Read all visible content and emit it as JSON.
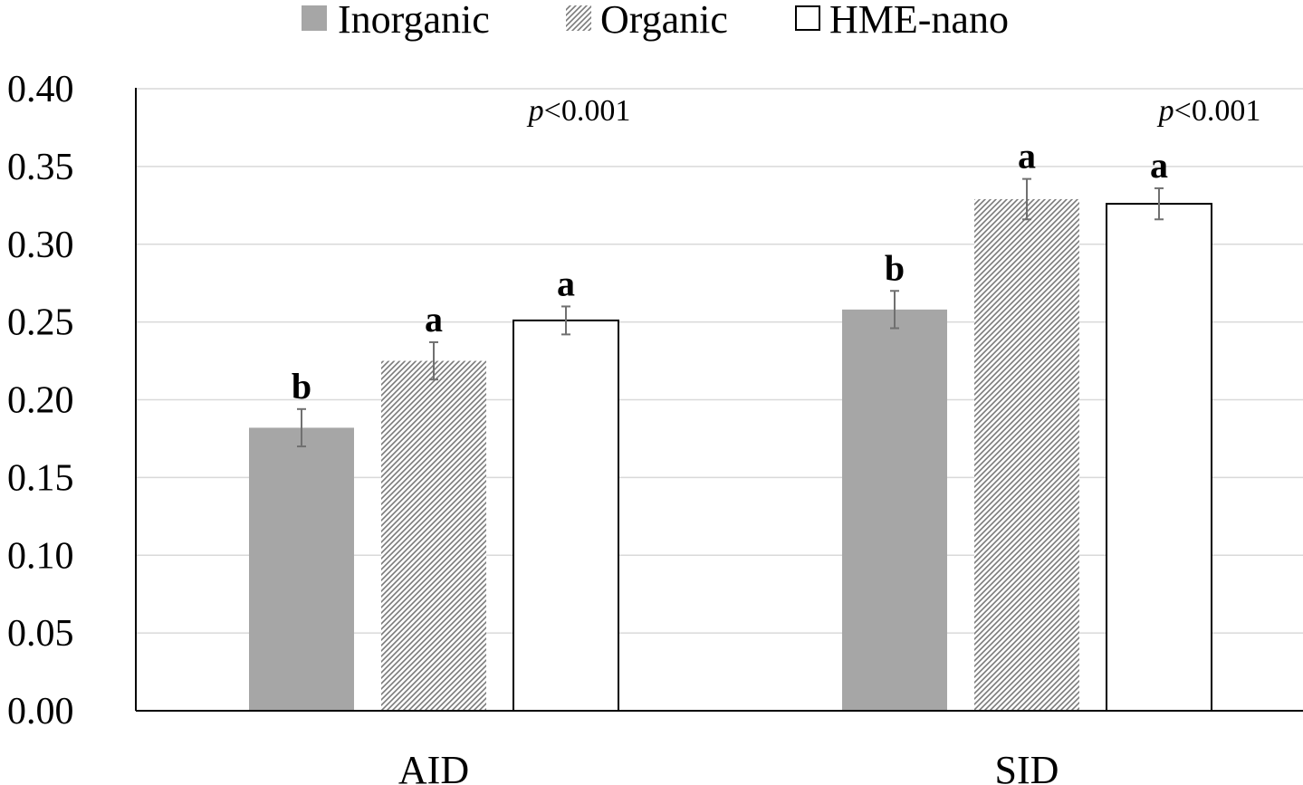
{
  "chart_data": {
    "type": "bar",
    "categories": [
      "AID",
      "SID"
    ],
    "series": [
      {
        "name": "Inorganic",
        "values": [
          0.182,
          0.258
        ],
        "errors": [
          0.012,
          0.012
        ],
        "letters": [
          "b",
          "b"
        ],
        "color": "#a6a6a6",
        "pattern": "solid"
      },
      {
        "name": "Organic",
        "values": [
          0.225,
          0.329
        ],
        "errors": [
          0.012,
          0.013
        ],
        "letters": [
          "a",
          "a"
        ],
        "color": "#ffffff",
        "pattern": "hatched"
      },
      {
        "name": "HME-nano",
        "values": [
          0.251,
          0.326
        ],
        "errors": [
          0.009,
          0.01
        ],
        "letters": [
          "a",
          "a"
        ],
        "color": "#ffffff",
        "pattern": "outline"
      }
    ],
    "ylim": [
      0,
      0.4
    ],
    "yticks": [
      "0.00",
      "0.05",
      "0.10",
      "0.15",
      "0.20",
      "0.25",
      "0.30",
      "0.35",
      "0.40"
    ],
    "grid": true,
    "legend": "top",
    "annotations": [
      {
        "category": "AID",
        "prefix": "p",
        "text": "<0.001"
      },
      {
        "category": "SID",
        "prefix": "p",
        "text": "<0.001"
      }
    ]
  }
}
